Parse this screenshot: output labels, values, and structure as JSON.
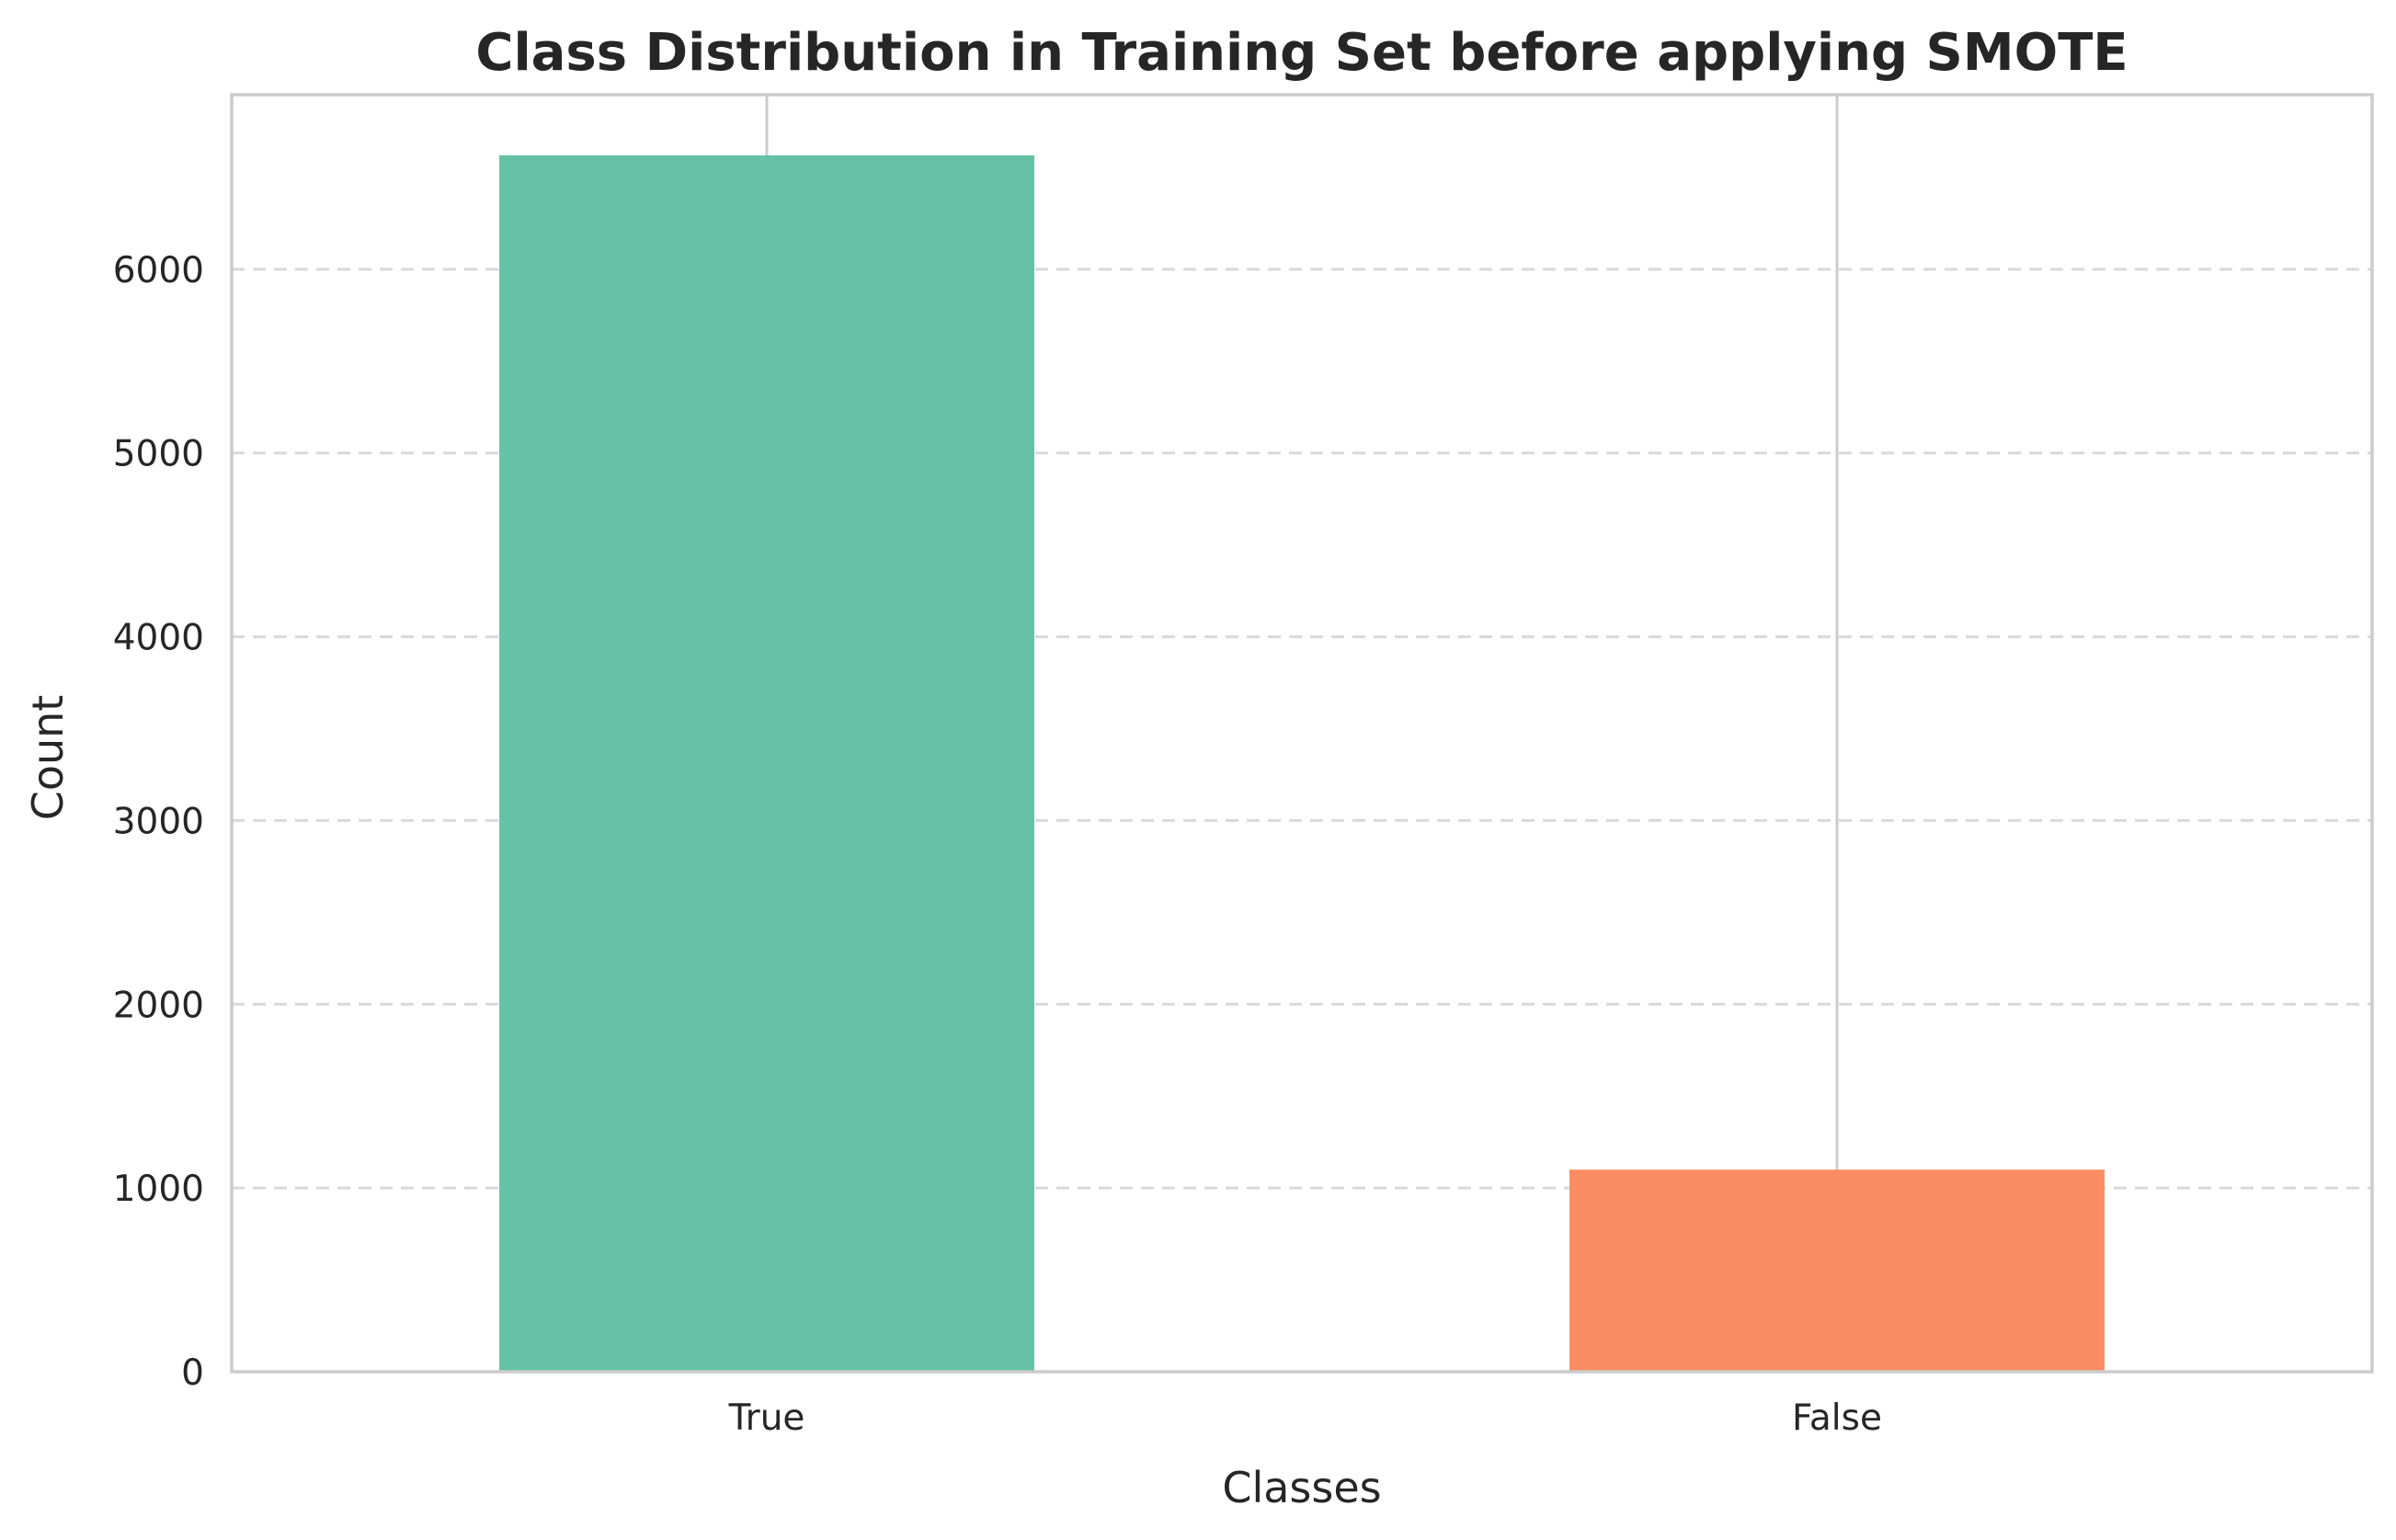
{
  "chart_data": {
    "type": "bar",
    "title": "Class Distribution in Training Set before applying SMOTE",
    "xlabel": "Classes",
    "ylabel": "Count",
    "categories": [
      "True",
      "False"
    ],
    "values": [
      6620,
      1100
    ],
    "ylim": [
      0,
      6950
    ],
    "yticks": [
      0,
      1000,
      2000,
      3000,
      4000,
      5000,
      6000
    ],
    "colors": [
      "#66c2a5",
      "#fc8d62"
    ],
    "grid": {
      "y": true,
      "style": "dashed",
      "color": "#d9d9d9"
    },
    "legend": "none"
  }
}
